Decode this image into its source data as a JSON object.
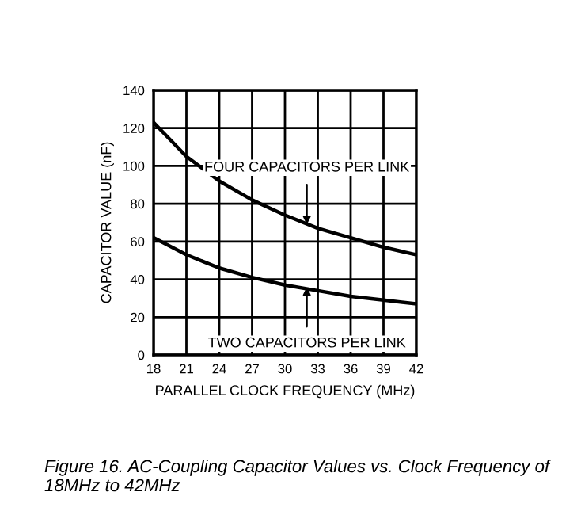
{
  "chart_data": {
    "type": "line",
    "xlabel": "PARALLEL CLOCK FREQUENCY (MHz)",
    "ylabel": "CAPACITOR VALUE (nF)",
    "x": [
      18,
      21,
      24,
      27,
      30,
      33,
      36,
      39,
      42
    ],
    "series": [
      {
        "color": "#000000",
        "values": [
          123,
          105,
          92,
          82,
          74,
          67,
          62,
          57,
          53
        ]
      },
      {
        "color": "#000000",
        "values": [
          62,
          53,
          46,
          41,
          37,
          34,
          31,
          29,
          27
        ]
      }
    ],
    "xlim": [
      18,
      42
    ],
    "xticks": [
      18,
      21,
      24,
      27,
      30,
      33,
      36,
      39,
      42
    ],
    "ylim": [
      0,
      140
    ],
    "yticks": [
      0,
      20,
      40,
      60,
      80,
      100,
      120,
      140
    ],
    "grid": true,
    "marker": "none",
    "line_style": "solid",
    "annotations": [
      {
        "text": "FOUR CAPACITORS PER LINK",
        "x": 32,
        "y": 69
      },
      {
        "text": "TWO CAPACITORS PER LINK",
        "x": 32,
        "y": 36
      },
      "Figure 16. AC-Coupling Capacitor Values vs. Clock Frequency of 18MHz to 42MHz"
    ]
  }
}
